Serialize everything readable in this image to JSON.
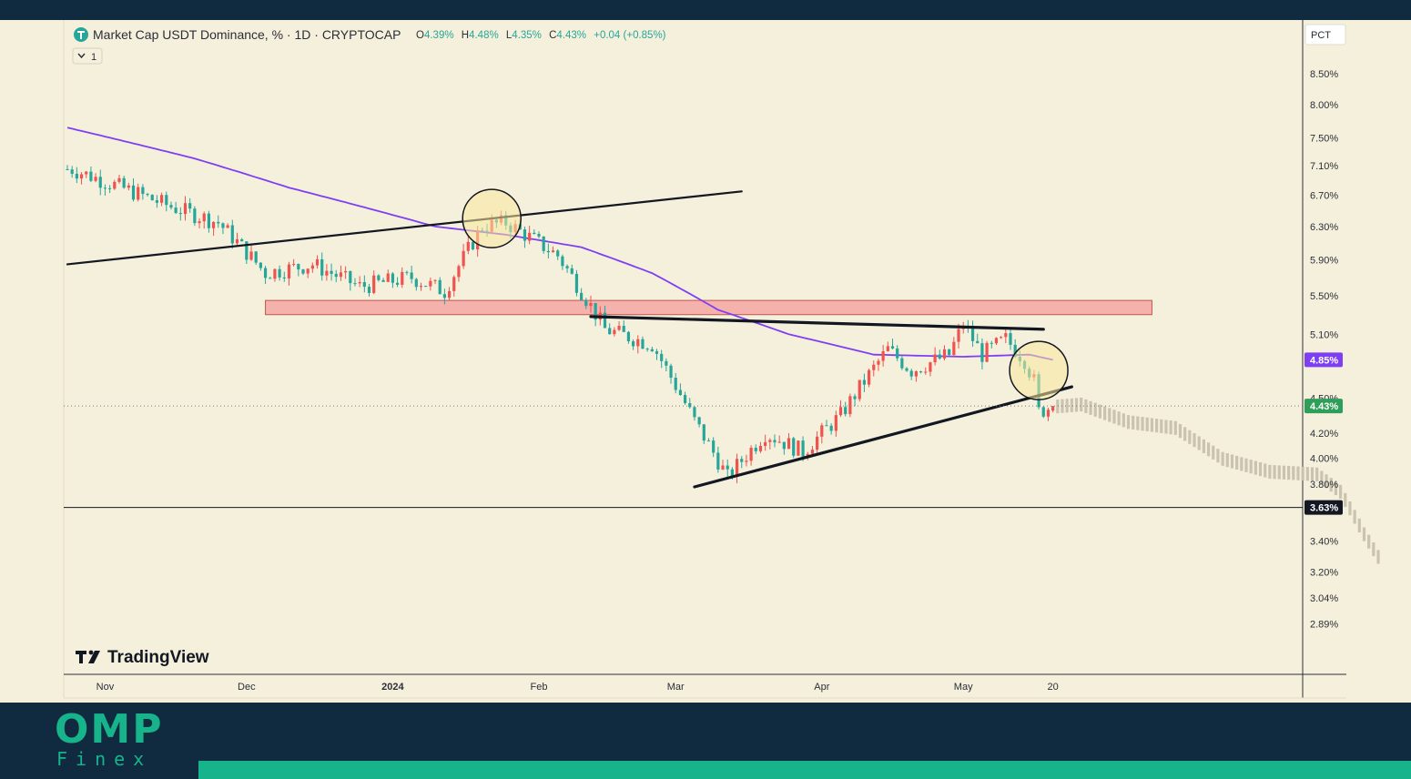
{
  "header": {
    "symbol_title": "Market Cap USDT Dominance, % · 1D · CRYPTOCAP",
    "ohlc": [
      {
        "label": "O",
        "value": "4.39%"
      },
      {
        "label": "H",
        "value": "4.48%"
      },
      {
        "label": "L",
        "value": "4.35%"
      },
      {
        "label": "C",
        "value": "4.43%"
      },
      {
        "label": "",
        "value": "+0.04 (+0.85%)"
      }
    ],
    "collapse_label": "1",
    "scale_mode": "PCT"
  },
  "watermark": "TradingView",
  "brand": {
    "name": "OMP",
    "sub": "Finex"
  },
  "colors": {
    "background": "#f5f0dc",
    "up_candle": "#26a69a",
    "down_candle": "#ef5350",
    "moving_average": "#7e3ff2",
    "resistance_zone": "#f4a7a3",
    "highlight_circle": "#f9e79f",
    "projection": "#c9c3b0",
    "brand_accent": "#17b48c"
  },
  "chart_data": {
    "type": "candlestick",
    "title": "Market Cap USDT Dominance, % · 1D · CRYPTOCAP",
    "y_axis": {
      "ticks": [
        "8.50%",
        "8.00%",
        "7.50%",
        "7.10%",
        "6.70%",
        "6.30%",
        "5.90%",
        "5.50%",
        "5.10%",
        "4.50%",
        "4.20%",
        "4.00%",
        "3.80%",
        "3.40%",
        "3.20%",
        "3.04%",
        "2.89%"
      ],
      "scale": "log",
      "range": [
        2.85,
        8.7
      ]
    },
    "x_axis": {
      "ticks": [
        "Nov",
        "Dec",
        "2024",
        "Feb",
        "Mar",
        "Apr",
        "May",
        "20"
      ]
    },
    "price_labels": [
      {
        "text": "4.85%",
        "value": 4.85,
        "kind": "moving_average"
      },
      {
        "text": "4.43%",
        "value": 4.43,
        "kind": "last_price"
      },
      {
        "text": "3.63%",
        "value": 3.63,
        "kind": "horizontal_line"
      }
    ],
    "series_anchors": [
      {
        "date": "2023-10-25",
        "close": 7.05
      },
      {
        "date": "2023-11-15",
        "close": 6.55
      },
      {
        "date": "2023-11-25",
        "close": 6.35
      },
      {
        "date": "2023-12-05",
        "close": 5.75
      },
      {
        "date": "2023-12-15",
        "close": 5.85
      },
      {
        "date": "2023-12-25",
        "close": 5.6
      },
      {
        "date": "2024-01-05",
        "close": 5.7
      },
      {
        "date": "2024-01-12",
        "close": 5.55
      },
      {
        "date": "2024-01-20",
        "close": 6.3
      },
      {
        "date": "2024-01-25",
        "close": 6.35
      },
      {
        "date": "2024-02-05",
        "close": 5.95
      },
      {
        "date": "2024-02-15",
        "close": 5.15
      },
      {
        "date": "2024-02-25",
        "close": 5.0
      },
      {
        "date": "2024-03-05",
        "close": 4.3
      },
      {
        "date": "2024-03-12",
        "close": 3.85
      },
      {
        "date": "2024-03-20",
        "close": 4.2
      },
      {
        "date": "2024-03-28",
        "close": 4.05
      },
      {
        "date": "2024-04-05",
        "close": 4.35
      },
      {
        "date": "2024-04-15",
        "close": 4.95
      },
      {
        "date": "2024-04-20",
        "close": 4.75
      },
      {
        "date": "2024-04-28",
        "close": 4.9
      },
      {
        "date": "2024-05-01",
        "close": 5.2
      },
      {
        "date": "2024-05-05",
        "close": 4.9
      },
      {
        "date": "2024-05-10",
        "close": 5.05
      },
      {
        "date": "2024-05-14",
        "close": 4.85
      },
      {
        "date": "2024-05-16",
        "close": 4.65
      },
      {
        "date": "2024-05-17",
        "close": 4.38
      },
      {
        "date": "2024-05-20",
        "close": 4.43
      }
    ],
    "moving_average_anchors": [
      {
        "date": "2023-10-24",
        "value": 7.65
      },
      {
        "date": "2023-11-20",
        "value": 7.2
      },
      {
        "date": "2023-12-10",
        "value": 6.8
      },
      {
        "date": "2024-01-10",
        "value": 6.3
      },
      {
        "date": "2024-01-25",
        "value": 6.2
      },
      {
        "date": "2024-02-10",
        "value": 6.05
      },
      {
        "date": "2024-02-25",
        "value": 5.75
      },
      {
        "date": "2024-03-10",
        "value": 5.35
      },
      {
        "date": "2024-03-25",
        "value": 5.1
      },
      {
        "date": "2024-04-12",
        "value": 4.9
      },
      {
        "date": "2024-05-01",
        "value": 4.88
      },
      {
        "date": "2024-05-15",
        "value": 4.9
      },
      {
        "date": "2024-05-20",
        "value": 4.85
      }
    ],
    "projection_anchors": [
      {
        "date": "2024-05-20",
        "value": 4.43
      },
      {
        "date": "2024-05-26",
        "value": 4.45
      },
      {
        "date": "2024-06-05",
        "value": 4.3
      },
      {
        "date": "2024-06-15",
        "value": 4.25
      },
      {
        "date": "2024-06-25",
        "value": 4.0
      },
      {
        "date": "2024-07-05",
        "value": 3.9
      },
      {
        "date": "2024-07-15",
        "value": 3.88
      },
      {
        "date": "2024-07-20",
        "value": 3.75
      },
      {
        "date": "2024-07-25",
        "value": 3.45
      },
      {
        "date": "2024-07-28",
        "value": 3.3
      }
    ],
    "drawings": {
      "upper_trendline": [
        {
          "date": "2023-10-24",
          "value": 5.85
        },
        {
          "date": "2024-03-15",
          "value": 6.75
        }
      ],
      "resistance_zone": {
        "from_date": "2023-12-05",
        "to_date": "2024-06-10",
        "low": 5.3,
        "high": 5.45
      },
      "descending_trendline": [
        {
          "date": "2024-02-12",
          "value": 5.28
        },
        {
          "date": "2024-05-18",
          "value": 5.15
        }
      ],
      "ascending_trendline": [
        {
          "date": "2024-03-05",
          "value": 3.78
        },
        {
          "date": "2024-05-24",
          "value": 4.6
        }
      ],
      "support_line_value": 3.63,
      "highlight_circles": [
        {
          "date": "2024-01-22",
          "value": 6.4
        },
        {
          "date": "2024-05-17",
          "value": 4.75
        }
      ]
    }
  }
}
